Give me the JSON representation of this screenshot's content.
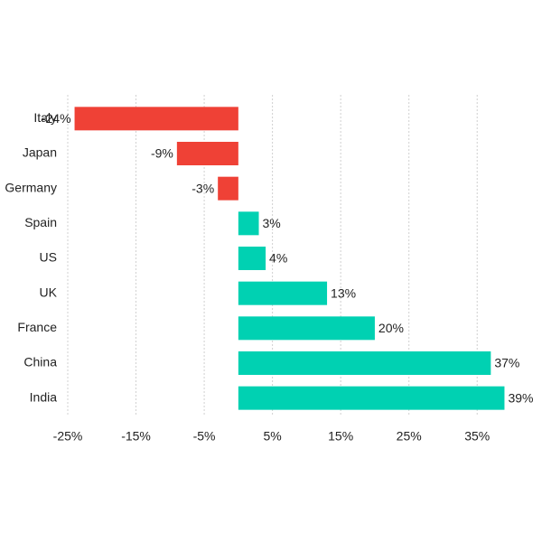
{
  "chart_data": {
    "type": "hbar",
    "categories": [
      "Italy",
      "Japan",
      "Germany",
      "Spain",
      "US",
      "UK",
      "France",
      "China",
      "India"
    ],
    "values": [
      -24,
      -9,
      -3,
      3,
      4,
      13,
      20,
      37,
      39
    ],
    "value_labels": [
      "-24%",
      "-9%",
      "-3%",
      "3%",
      "4%",
      "13%",
      "20%",
      "37%",
      "39%"
    ],
    "negative_color": "#ef4136",
    "positive_color": "#00d1b2",
    "xlim": [
      -25,
      40
    ],
    "xticks": [
      {
        "value": -25,
        "label": "-25%"
      },
      {
        "value": -15,
        "label": "-15%"
      },
      {
        "value": -5,
        "label": "-5%"
      },
      {
        "value": 5,
        "label": "5%"
      },
      {
        "value": 15,
        "label": "15%"
      },
      {
        "value": 25,
        "label": "25%"
      },
      {
        "value": 35,
        "label": "35%"
      }
    ],
    "grid": true
  }
}
